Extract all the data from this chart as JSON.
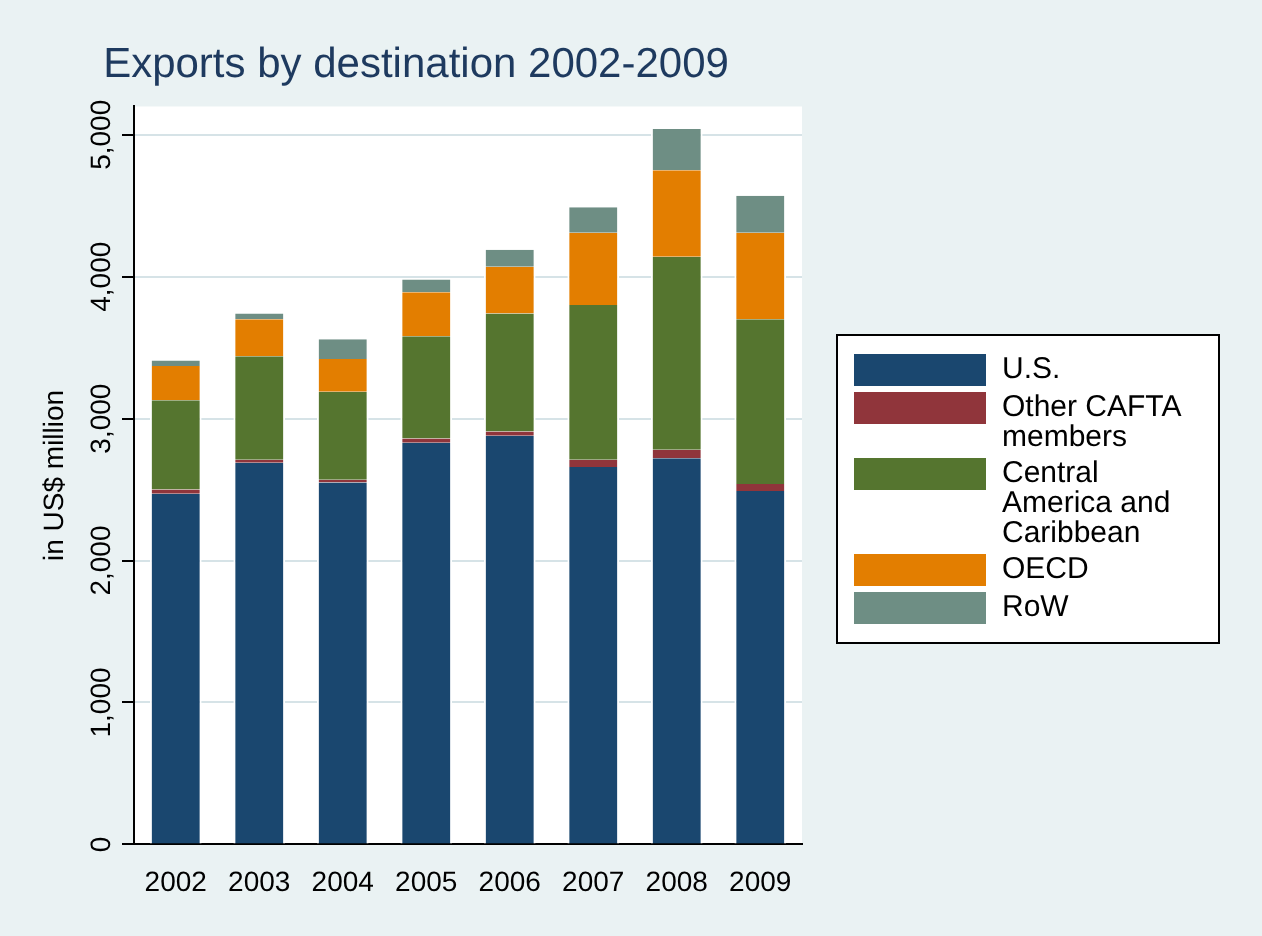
{
  "chart_data": {
    "type": "bar",
    "title": "Exports by destination 2002-2009",
    "ylabel": "in US$ million",
    "stacked": true,
    "categories": [
      "2002",
      "2003",
      "2004",
      "2005",
      "2006",
      "2007",
      "2008",
      "2009"
    ],
    "series": [
      {
        "name": "U.S.",
        "color": "#1a476f",
        "values": [
          2470,
          2690,
          2550,
          2830,
          2880,
          2660,
          2720,
          2490
        ]
      },
      {
        "name": "Other CAFTA members",
        "color": "#90353b",
        "values": [
          30,
          20,
          20,
          30,
          30,
          50,
          60,
          50
        ]
      },
      {
        "name": "Central America and Caribbean",
        "color": "#55752f",
        "values": [
          630,
          730,
          620,
          720,
          830,
          1090,
          1360,
          1160
        ]
      },
      {
        "name": "OECD",
        "color": "#e37e00",
        "values": [
          240,
          260,
          230,
          310,
          330,
          510,
          610,
          610
        ]
      },
      {
        "name": "RoW",
        "color": "#6e8e84",
        "values": [
          40,
          40,
          140,
          90,
          120,
          180,
          290,
          260
        ]
      }
    ],
    "ylim": [
      0,
      5200
    ],
    "yticks": [
      0,
      {
        "value": 1000,
        "label": "1,000"
      },
      {
        "value": 2000,
        "label": "2,000"
      },
      {
        "value": 3000,
        "label": "3,000"
      },
      {
        "value": 4000,
        "label": "4,000"
      },
      {
        "value": 5000,
        "label": "5,000"
      }
    ],
    "grid": "y",
    "legend": "right"
  }
}
